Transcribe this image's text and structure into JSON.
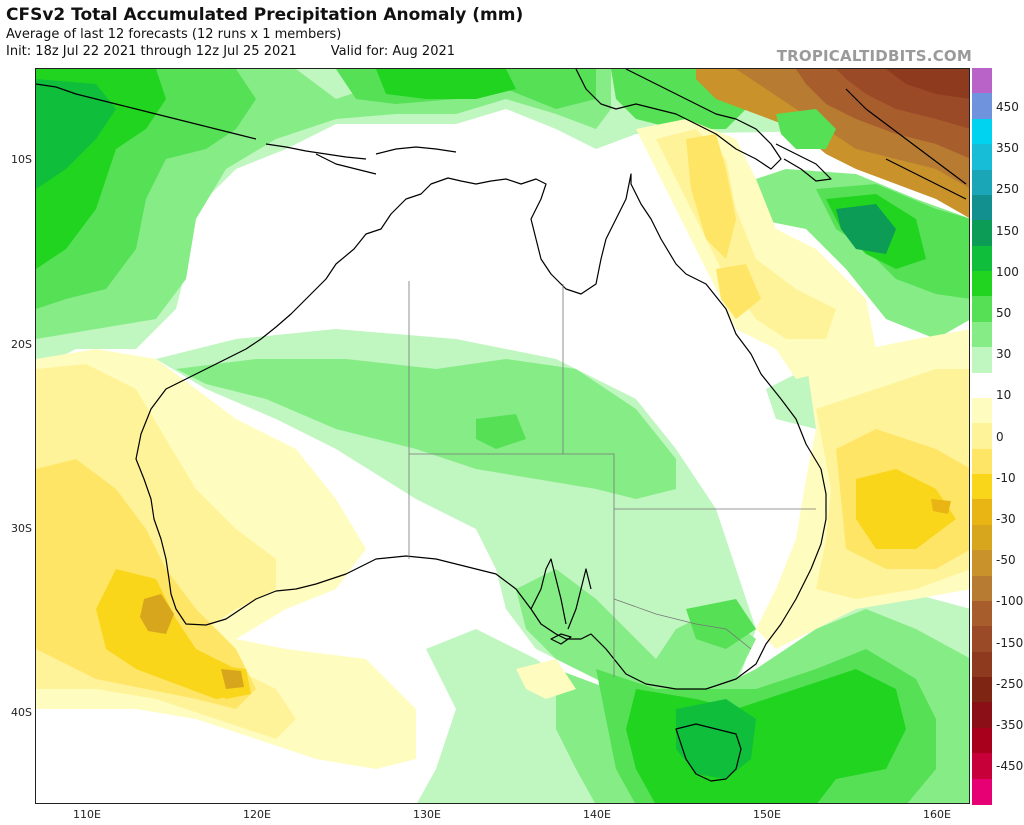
{
  "header": {
    "title": "CFSv2 Total Accumulated Precipitation Anomaly (mm)",
    "subtitle": "Average of last 12 forecasts (12 runs x 1 members)",
    "init": "Init: 18z Jul 22 2021 through 12z Jul 25 2021",
    "valid": "Valid for: Aug 2021",
    "watermark": "TROPICALTIDBITS.COM"
  },
  "map": {
    "projection": "equirectangular",
    "region": "Australia",
    "lon_range": [
      107,
      162
    ],
    "lat_range": [
      -46,
      -3.5
    ],
    "lat_labels": [
      "10S",
      "20S",
      "30S",
      "40S"
    ],
    "lon_labels": [
      "110E",
      "120E",
      "130E",
      "140E",
      "150E",
      "160E"
    ]
  },
  "colorbar": {
    "labels": [
      "450",
      "350",
      "250",
      "150",
      "100",
      "50",
      "30",
      "10",
      "0",
      "-10",
      "-30",
      "-50",
      "-100",
      "-150",
      "-250",
      "-350",
      "-450"
    ],
    "colors": {
      "wet_400": "#b962c7",
      "wet_300": "#6f93dd",
      "wet_250": "#00d3f0",
      "wet_200": "#17bcd6",
      "wet_150": "#1aa6b7",
      "wet_100": "#12908f",
      "wet_75": "#0c9c55",
      "wet_50": "#0fbf3c",
      "wet_30": "#20d420",
      "wet_20": "#56e056",
      "wet_10": "#86ec86",
      "wet_5": "#c0f6c0",
      "neutral": "#ffffff",
      "dry_5": "#fffcc0",
      "dry_10": "#fff39a",
      "dry_20": "#ffe566",
      "dry_30": "#f9d61a",
      "dry_40": "#e8b514",
      "dry_50": "#d8a61c",
      "dry_75": "#c9922a",
      "dry_100": "#b87b32",
      "dry_125": "#a85d2c",
      "dry_150": "#9a4a26",
      "dry_200": "#8e3a1e",
      "dry_250": "#7e2514",
      "dry_300": "#8b0f17",
      "dry_350": "#a8001c",
      "dry_400": "#c8003a",
      "dry_450": "#e60073"
    }
  }
}
